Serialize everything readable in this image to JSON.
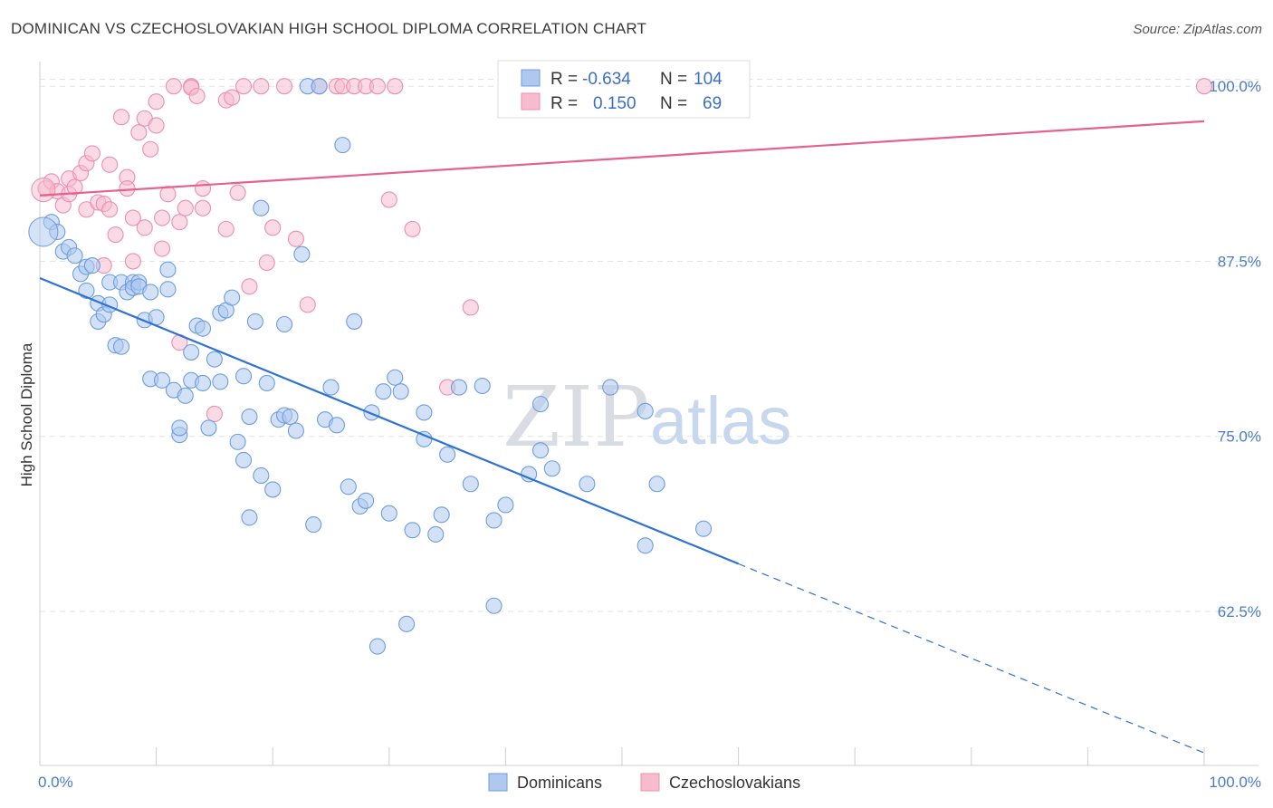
{
  "title": "DOMINICAN VS CZECHOSLOVAKIAN HIGH SCHOOL DIPLOMA CORRELATION CHART",
  "source": "Source: ZipAtlas.com",
  "watermark": {
    "zip": "ZIP",
    "atlas": "atlas"
  },
  "colors": {
    "blue_fill": "#aec8ee",
    "blue_stroke": "#6d9de0",
    "blue_line": "#2f72d6",
    "pink_fill": "#f6bccd",
    "pink_stroke": "#ec8fae",
    "pink_line": "#e4628c",
    "tick": "#4a7cc9",
    "grid": "#e3e3e3"
  },
  "legend": {
    "rows": [
      {
        "r_label": "R =",
        "r_value": "-0.634",
        "n_label": "N =",
        "n_value": "104"
      },
      {
        "r_label": "R =",
        "r_value": "0.150",
        "n_label": "N =",
        "n_value": "69"
      }
    ]
  },
  "bottom_legend": [
    "Dominicans",
    "Czechoslovakians"
  ],
  "chart_data": {
    "type": "scatter",
    "xlabel": "",
    "ylabel": "High School Diploma",
    "xlim": [
      0,
      100
    ],
    "ylim": [
      51.5,
      101.5
    ],
    "x_tick_labels": [
      "0.0%",
      "100.0%"
    ],
    "y_ticks": [
      62.5,
      75.0,
      87.5,
      100.0
    ],
    "y_tick_labels": [
      "62.5%",
      "75.0%",
      "87.5%",
      "100.0%"
    ],
    "grid": "horizontal dashed",
    "legend_placement": "top-center",
    "series": [
      {
        "name": "Dominicans",
        "r": -0.634,
        "n": 104,
        "trend": {
          "x0": 0,
          "y0": 86.3,
          "x1": 60,
          "y1": 65.9,
          "dashed_to_x": 100,
          "dashed_to_y": 52.4
        },
        "points": [
          [
            1,
            90.3
          ],
          [
            1.5,
            89.6
          ],
          [
            2,
            88.2
          ],
          [
            2.5,
            88.5
          ],
          [
            3,
            87.9
          ],
          [
            3.5,
            86.6
          ],
          [
            4,
            87.1
          ],
          [
            4,
            85.4
          ],
          [
            4.5,
            87.2
          ],
          [
            5,
            84.5
          ],
          [
            5,
            83.2
          ],
          [
            5.5,
            83.7
          ],
          [
            6,
            86.0
          ],
          [
            6,
            84.4
          ],
          [
            6.5,
            81.5
          ],
          [
            7,
            81.4
          ],
          [
            7,
            86.0
          ],
          [
            7.5,
            85.3
          ],
          [
            8,
            86.0
          ],
          [
            8,
            85.6
          ],
          [
            8.5,
            86.0
          ],
          [
            8.5,
            85.7
          ],
          [
            9,
            83.3
          ],
          [
            9.5,
            85.3
          ],
          [
            9.5,
            79.1
          ],
          [
            10,
            83.5
          ],
          [
            10.5,
            79.0
          ],
          [
            11,
            85.5
          ],
          [
            11,
            86.9
          ],
          [
            11.5,
            78.3
          ],
          [
            12,
            75.1
          ],
          [
            12,
            75.6
          ],
          [
            12.5,
            77.9
          ],
          [
            13,
            79.0
          ],
          [
            13,
            81.0
          ],
          [
            13.5,
            82.9
          ],
          [
            14,
            82.7
          ],
          [
            14,
            78.8
          ],
          [
            14.5,
            75.6
          ],
          [
            15,
            80.5
          ],
          [
            15.5,
            78.9
          ],
          [
            15.5,
            83.8
          ],
          [
            16,
            84.0
          ],
          [
            16.5,
            84.9
          ],
          [
            17,
            74.6
          ],
          [
            17.5,
            79.3
          ],
          [
            17.5,
            73.3
          ],
          [
            18,
            76.4
          ],
          [
            18,
            69.2
          ],
          [
            18.5,
            83.2
          ],
          [
            19,
            72.2
          ],
          [
            19,
            91.3
          ],
          [
            19.5,
            78.8
          ],
          [
            20,
            71.2
          ],
          [
            20.5,
            76.2
          ],
          [
            21,
            83.0
          ],
          [
            21,
            76.5
          ],
          [
            21.5,
            76.4
          ],
          [
            22,
            75.4
          ],
          [
            22.5,
            88.0
          ],
          [
            23,
            100
          ],
          [
            23.5,
            68.7
          ],
          [
            24,
            100
          ],
          [
            24.5,
            76.2
          ],
          [
            25,
            78.5
          ],
          [
            25.5,
            75.8
          ],
          [
            26,
            95.8
          ],
          [
            26.5,
            71.4
          ],
          [
            27,
            83.2
          ],
          [
            27.5,
            70.0
          ],
          [
            28,
            70.4
          ],
          [
            28.5,
            76.7
          ],
          [
            29,
            60.0
          ],
          [
            29.5,
            78.2
          ],
          [
            30,
            69.5
          ],
          [
            30.5,
            79.2
          ],
          [
            31,
            78.2
          ],
          [
            31.5,
            61.6
          ],
          [
            32,
            68.3
          ],
          [
            33,
            76.7
          ],
          [
            33,
            74.8
          ],
          [
            34,
            68.0
          ],
          [
            34.5,
            69.4
          ],
          [
            35,
            73.7
          ],
          [
            36,
            78.5
          ],
          [
            37,
            71.6
          ],
          [
            38,
            78.6
          ],
          [
            39,
            69.0
          ],
          [
            39,
            62.9
          ],
          [
            40,
            70.1
          ],
          [
            42,
            72.3
          ],
          [
            43,
            77.3
          ],
          [
            43,
            74.0
          ],
          [
            44,
            72.7
          ],
          [
            47,
            71.6
          ],
          [
            49,
            78.5
          ],
          [
            52,
            76.8
          ],
          [
            52,
            67.2
          ],
          [
            53,
            71.6
          ],
          [
            57,
            68.4
          ]
        ]
      },
      {
        "name": "Czechoslovakians",
        "r": 0.15,
        "n": 69,
        "trend": {
          "x0": 0,
          "y0": 92.2,
          "x1": 100,
          "y1": 97.5
        },
        "points": [
          [
            0.5,
            92.7
          ],
          [
            1,
            93.2
          ],
          [
            1.5,
            92.5
          ],
          [
            2,
            91.5
          ],
          [
            2.5,
            93.4
          ],
          [
            2.5,
            92.3
          ],
          [
            3,
            92.8
          ],
          [
            3.5,
            93.8
          ],
          [
            4,
            94.5
          ],
          [
            4,
            91.2
          ],
          [
            4.5,
            95.2
          ],
          [
            5,
            91.7
          ],
          [
            5.5,
            91.6
          ],
          [
            5.5,
            87.2
          ],
          [
            6,
            94.4
          ],
          [
            6,
            91.2
          ],
          [
            6.5,
            89.4
          ],
          [
            7,
            97.8
          ],
          [
            7.5,
            93.5
          ],
          [
            7.5,
            92.7
          ],
          [
            8,
            90.6
          ],
          [
            8,
            87.5
          ],
          [
            8.5,
            96.7
          ],
          [
            9,
            97.7
          ],
          [
            9,
            89.9
          ],
          [
            9.5,
            95.5
          ],
          [
            10,
            98.9
          ],
          [
            10,
            97.2
          ],
          [
            10.5,
            88.4
          ],
          [
            10.5,
            90.6
          ],
          [
            11,
            92.3
          ],
          [
            11.5,
            100
          ],
          [
            12,
            90.3
          ],
          [
            12,
            81.7
          ],
          [
            12.5,
            91.3
          ],
          [
            13,
            100
          ],
          [
            13,
            99.9
          ],
          [
            13.5,
            99.3
          ],
          [
            14,
            92.7
          ],
          [
            14,
            91.3
          ],
          [
            15,
            76.6
          ],
          [
            16,
            89.8
          ],
          [
            16,
            99
          ],
          [
            16.5,
            99.2
          ],
          [
            17,
            92.4
          ],
          [
            17.5,
            100
          ],
          [
            18,
            85.7
          ],
          [
            19,
            100
          ],
          [
            19.5,
            87.4
          ],
          [
            20,
            89.9
          ],
          [
            21,
            100
          ],
          [
            22,
            89.1
          ],
          [
            23,
            84.4
          ],
          [
            24,
            100
          ],
          [
            25.5,
            100
          ],
          [
            26,
            100
          ],
          [
            27,
            100
          ],
          [
            28,
            100
          ],
          [
            29,
            100
          ],
          [
            30,
            91.9
          ],
          [
            30.5,
            100
          ],
          [
            32,
            89.8
          ],
          [
            35,
            78.5
          ],
          [
            37,
            84.2
          ],
          [
            100,
            100
          ]
        ]
      }
    ]
  }
}
